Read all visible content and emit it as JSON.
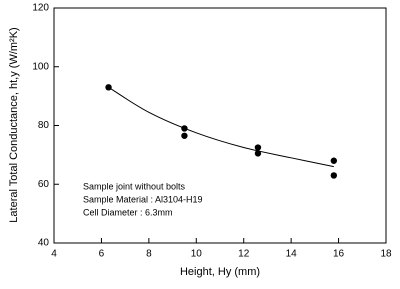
{
  "chart_data": {
    "type": "scatter",
    "x_label": "Height, Hy (mm)",
    "y_label": "Lateral Total Conductance, ht,y (W/m²K)",
    "annotations": [
      "Sample joint without bolts",
      "Sample Material : Al3104-H19",
      "Cell Diameter : 6.3mm"
    ],
    "series": [
      {
        "color": "#000000",
        "x": [
          6.3,
          9.5,
          9.5,
          12.6,
          12.6,
          15.8,
          15.8
        ],
        "values": [
          93,
          79,
          76.5,
          72.5,
          70.5,
          68,
          63
        ]
      },
      {
        "type": "line",
        "color": "#000000",
        "x": [
          6.3,
          8,
          10,
          12,
          14,
          15.8
        ],
        "values": [
          93,
          84.5,
          77.5,
          72.5,
          69,
          66
        ]
      }
    ],
    "xlim": [
      4,
      18
    ],
    "xticks": [
      4,
      6,
      8,
      10,
      12,
      14,
      16,
      18
    ],
    "ylim": [
      40,
      120
    ],
    "yticks": [
      40,
      60,
      80,
      100,
      120
    ]
  }
}
